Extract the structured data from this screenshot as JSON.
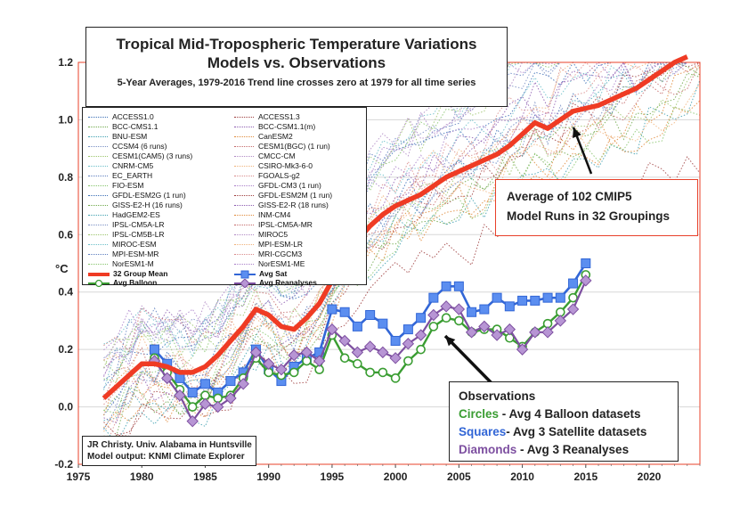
{
  "chart_data": {
    "type": "line",
    "title": "Tropical Mid-Tropospheric Temperature Variations",
    "subtitle": "Models vs. Observations",
    "note": "5-Year Averages, 1979-2016 Trend line crosses zero at 1979 for all time series",
    "ylabel": "°C",
    "xlim": [
      1975,
      2024
    ],
    "ylim": [
      -0.2,
      1.2
    ],
    "x_ticks": [
      "1975",
      "1980",
      "1985",
      "1990",
      "1995",
      "2000",
      "2005",
      "2010",
      "2015",
      "2020"
    ],
    "y_ticks": [
      "-0.2",
      "0.0",
      "0.2",
      "0.4",
      "0.6",
      "0.8",
      "1.0",
      "1.2"
    ],
    "grid": true,
    "legend_position": "top-left",
    "model_names": [
      [
        "ACCESS1.0",
        "ACCESS1.3"
      ],
      [
        "BCC-CMS1.1",
        "BCC-CSM1.1(m)"
      ],
      [
        "BNU-ESM",
        "CanESM2"
      ],
      [
        "CCSM4 (6 runs)",
        "CESM1(BGC) (1 run)"
      ],
      [
        "CESM1(CAM5) (3 runs)",
        "CMCC-CM"
      ],
      [
        "CNRM-CM5",
        "CSIRO-Mk3-6-0"
      ],
      [
        "EC_EARTH",
        "FGOALS-g2"
      ],
      [
        "FIO-ESM",
        "GFDL-CM3 (1 run)"
      ],
      [
        "GFDL-ESM2G (1 run)",
        "GFDL-ESM2M (1 run)"
      ],
      [
        "GISS-E2-H (16 runs)",
        "GISS-E2-R (18 runs)"
      ],
      [
        "HadGEM2-ES",
        "INM-CM4"
      ],
      [
        "IPSL-CM5A-LR",
        "IPSL-CM5A-MR"
      ],
      [
        "IPSL-CM5B-LR",
        "MIROC5"
      ],
      [
        "MIROC-ESM",
        "MPI-ESM-LR"
      ],
      [
        "MPI-ESM-MR",
        "MRI-CGCM3"
      ],
      [
        "NorESM1-M",
        "NorESM1-ME"
      ]
    ],
    "model_colors": [
      "#3b6fb6",
      "#9e3d3d",
      "#6fa84a",
      "#8c5bb0",
      "#3fa0b0",
      "#e08a3a",
      "#7a8fc4",
      "#c46a6a",
      "#9cc46b",
      "#b08ac4",
      "#6bbfc9",
      "#f0b27a",
      "#5f7fbf",
      "#d98c8c",
      "#86c46b",
      "#a97fc9"
    ],
    "series": [
      {
        "name": "32 Group Mean",
        "color": "#ef3b24",
        "x": [
          1977,
          1978,
          1979,
          1980,
          1981,
          1982,
          1983,
          1984,
          1985,
          1986,
          1987,
          1988,
          1989,
          1990,
          1991,
          1992,
          1993,
          1994,
          1995,
          1996,
          1997,
          1998,
          1999,
          2000,
          2001,
          2002,
          2003,
          2004,
          2005,
          2006,
          2007,
          2008,
          2009,
          2010,
          2011,
          2012,
          2013,
          2014,
          2015,
          2016,
          2017,
          2018,
          2019,
          2020,
          2021,
          2022,
          2023
        ],
        "values": [
          0.03,
          0.07,
          0.11,
          0.15,
          0.15,
          0.14,
          0.12,
          0.12,
          0.14,
          0.18,
          0.23,
          0.28,
          0.34,
          0.32,
          0.28,
          0.27,
          0.31,
          0.36,
          0.44,
          0.53,
          0.58,
          0.63,
          0.67,
          0.7,
          0.72,
          0.74,
          0.77,
          0.8,
          0.82,
          0.84,
          0.86,
          0.88,
          0.91,
          0.95,
          0.99,
          0.97,
          1.0,
          1.03,
          1.04,
          1.05,
          1.07,
          1.09,
          1.11,
          1.14,
          1.17,
          1.2,
          1.22
        ]
      },
      {
        "name": "Avg Sat",
        "color": "#3266d6",
        "x": [
          1981,
          1982,
          1983,
          1984,
          1985,
          1986,
          1987,
          1988,
          1989,
          1990,
          1991,
          1992,
          1993,
          1994,
          1995,
          1996,
          1997,
          1998,
          1999,
          2000,
          2001,
          2002,
          2003,
          2004,
          2005,
          2006,
          2007,
          2008,
          2009,
          2010,
          2011,
          2012,
          2013,
          2014,
          2015
        ],
        "values": [
          0.2,
          0.15,
          0.1,
          0.05,
          0.08,
          0.05,
          0.09,
          0.12,
          0.2,
          0.13,
          0.09,
          0.14,
          0.17,
          0.19,
          0.34,
          0.33,
          0.28,
          0.32,
          0.29,
          0.23,
          0.27,
          0.31,
          0.38,
          0.42,
          0.42,
          0.33,
          0.34,
          0.38,
          0.35,
          0.37,
          0.37,
          0.38,
          0.38,
          0.43,
          0.5
        ]
      },
      {
        "name": "Avg Balloon",
        "color": "#3a9d32",
        "x": [
          1981,
          1982,
          1983,
          1984,
          1985,
          1986,
          1987,
          1988,
          1989,
          1990,
          1991,
          1992,
          1993,
          1994,
          1995,
          1996,
          1997,
          1998,
          1999,
          2000,
          2001,
          2002,
          2003,
          2004,
          2005,
          2006,
          2007,
          2008,
          2009,
          2010,
          2011,
          2012,
          2013,
          2014,
          2015
        ],
        "values": [
          0.17,
          0.12,
          0.06,
          0.0,
          0.04,
          0.03,
          0.04,
          0.1,
          0.17,
          0.12,
          0.11,
          0.12,
          0.16,
          0.13,
          0.25,
          0.17,
          0.15,
          0.12,
          0.12,
          0.1,
          0.16,
          0.2,
          0.28,
          0.31,
          0.3,
          0.26,
          0.27,
          0.27,
          0.24,
          0.21,
          0.26,
          0.29,
          0.33,
          0.38,
          0.46
        ]
      },
      {
        "name": "Avg Reanalyses",
        "color": "#7d4fa0",
        "x": [
          1981,
          1982,
          1983,
          1984,
          1985,
          1986,
          1987,
          1988,
          1989,
          1990,
          1991,
          1992,
          1993,
          1994,
          1995,
          1996,
          1997,
          1998,
          1999,
          2000,
          2001,
          2002,
          2003,
          2004,
          2005,
          2006,
          2007,
          2008,
          2009,
          2010,
          2011,
          2012,
          2013,
          2014,
          2015
        ],
        "values": [
          0.16,
          0.1,
          0.04,
          -0.05,
          0.01,
          0.0,
          0.03,
          0.08,
          0.19,
          0.15,
          0.13,
          0.18,
          0.19,
          0.16,
          0.27,
          0.23,
          0.19,
          0.21,
          0.19,
          0.17,
          0.22,
          0.25,
          0.32,
          0.35,
          0.34,
          0.26,
          0.28,
          0.25,
          0.27,
          0.2,
          0.26,
          0.26,
          0.3,
          0.34,
          0.44
        ]
      }
    ]
  },
  "title_box": {
    "line1": "Tropical Mid-Tropospheric Temperature Variations",
    "line2": "Models vs. Observations",
    "line3": "5-Year Averages, 1979-2016 Trend line crosses zero at 1979 for all time series"
  },
  "legend": {
    "group_mean": "32 Group Mean",
    "avg_sat": "Avg Sat",
    "avg_balloon": "Avg Balloon",
    "avg_reanalyses": "Avg Reanalyses"
  },
  "annotation_avg": {
    "line1": "Average of 102 CMIP5",
    "line2": "Model Runs in 32 Groupings"
  },
  "annotation_obs": {
    "heading": "Observations",
    "circles_word": "Circles",
    "circles_rest": " - Avg 4 Balloon datasets",
    "squares_word": "Squares",
    "squares_rest": "- Avg 3 Satellite datasets",
    "diamonds_word": "Diamonds",
    "diamonds_rest": " - Avg 3 Reanalyses"
  },
  "credit": {
    "line1": "JR Christy. Univ. Alabama in Huntsville",
    "line2": "Model output: KNMI Climate Explorer"
  },
  "unit_label": "°C",
  "colors": {
    "mean": "#ef3b24",
    "satellite": "#3266d6",
    "balloon": "#3a9d32",
    "reanalyses": "#7d4fa0",
    "plot_border": "#e8402a"
  }
}
